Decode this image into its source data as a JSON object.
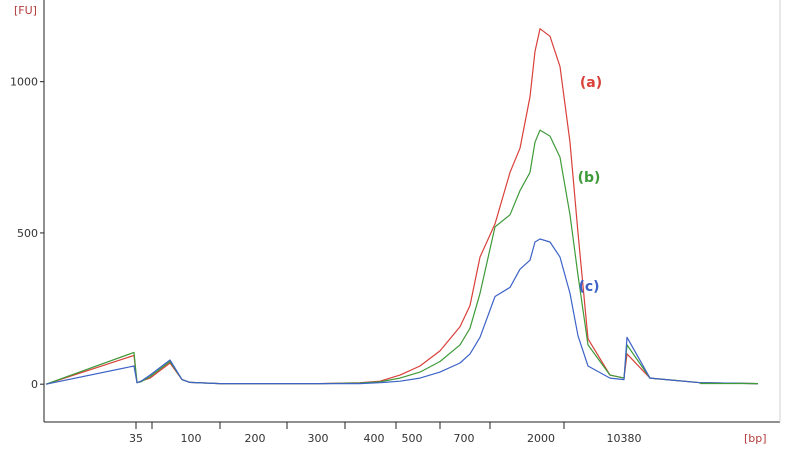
{
  "chart_data": {
    "type": "line",
    "ylabel": "[FU]",
    "xlabel": "[bp]",
    "x_scale": "categorical",
    "ylim": [
      -125,
      1270
    ],
    "y_ticks": [
      0,
      500,
      1000
    ],
    "x_ticks": [
      "35",
      "100",
      "200",
      "300",
      "400",
      "500",
      "700",
      "2000",
      "10380"
    ],
    "grid": false,
    "colors": {
      "a": "#d9403a",
      "b": "#3f9a3a",
      "c": "#3d63c7"
    },
    "series": [
      {
        "name": "(a)",
        "points": [
          [
            "35",
            0
          ],
          [
            "35",
            95
          ],
          [
            "35",
            5
          ],
          [
            "35",
            10
          ],
          [
            "35",
            20
          ],
          [
            "100",
            70
          ],
          [
            "100",
            15
          ],
          [
            "100",
            6
          ],
          [
            "200",
            2
          ],
          [
            "300",
            2
          ],
          [
            "400",
            5
          ],
          [
            "400",
            10
          ],
          [
            "500",
            30
          ],
          [
            "500",
            60
          ],
          [
            "500",
            110
          ],
          [
            "700",
            190
          ],
          [
            "700",
            260
          ],
          [
            "700",
            420
          ],
          [
            "700",
            530
          ],
          [
            "700",
            700
          ],
          [
            "700",
            780
          ],
          [
            "2000",
            950
          ],
          [
            "2000",
            1100
          ],
          [
            "2000",
            1175
          ],
          [
            "2000",
            1150
          ],
          [
            "2000",
            1050
          ],
          [
            "2000",
            800
          ],
          [
            "2000",
            500
          ],
          [
            "2000",
            150
          ],
          [
            "2000",
            30
          ],
          [
            "10380",
            20
          ],
          [
            "10380",
            100
          ],
          [
            "10380",
            20
          ],
          [
            "10380",
            5
          ],
          [
            "10380",
            2
          ]
        ]
      },
      {
        "name": "(b)",
        "points": [
          [
            "35",
            0
          ],
          [
            "35",
            105
          ],
          [
            "35",
            5
          ],
          [
            "35",
            8
          ],
          [
            "35",
            25
          ],
          [
            "100",
            75
          ],
          [
            "100",
            15
          ],
          [
            "100",
            6
          ],
          [
            "200",
            2
          ],
          [
            "300",
            2
          ],
          [
            "400",
            4
          ],
          [
            "400",
            8
          ],
          [
            "500",
            20
          ],
          [
            "500",
            40
          ],
          [
            "500",
            75
          ],
          [
            "700",
            130
          ],
          [
            "700",
            185
          ],
          [
            "700",
            300
          ],
          [
            "700",
            520
          ],
          [
            "700",
            560
          ],
          [
            "700",
            640
          ],
          [
            "2000",
            700
          ],
          [
            "2000",
            800
          ],
          [
            "2000",
            840
          ],
          [
            "2000",
            820
          ],
          [
            "2000",
            750
          ],
          [
            "2000",
            560
          ],
          [
            "2000",
            360
          ],
          [
            "2000",
            130
          ],
          [
            "2000",
            30
          ],
          [
            "10380",
            20
          ],
          [
            "10380",
            130
          ],
          [
            "10380",
            20
          ],
          [
            "10380",
            5
          ],
          [
            "10380",
            2
          ]
        ]
      },
      {
        "name": "(c)",
        "points": [
          [
            "35",
            0
          ],
          [
            "35",
            60
          ],
          [
            "35",
            5
          ],
          [
            "35",
            10
          ],
          [
            "35",
            30
          ],
          [
            "100",
            80
          ],
          [
            "100",
            15
          ],
          [
            "100",
            6
          ],
          [
            "200",
            2
          ],
          [
            "300",
            2
          ],
          [
            "400",
            2
          ],
          [
            "400",
            5
          ],
          [
            "500",
            10
          ],
          [
            "500",
            20
          ],
          [
            "500",
            40
          ],
          [
            "700",
            70
          ],
          [
            "700",
            100
          ],
          [
            "700",
            155
          ],
          [
            "700",
            290
          ],
          [
            "700",
            320
          ],
          [
            "700",
            380
          ],
          [
            "2000",
            410
          ],
          [
            "2000",
            470
          ],
          [
            "2000",
            480
          ],
          [
            "2000",
            470
          ],
          [
            "2000",
            420
          ],
          [
            "2000",
            300
          ],
          [
            "2000",
            160
          ],
          [
            "2000",
            60
          ],
          [
            "2000",
            20
          ],
          [
            "10380",
            15
          ],
          [
            "10380",
            155
          ],
          [
            "10380",
            20
          ],
          [
            "10380",
            5
          ],
          [
            "10380",
            2
          ]
        ]
      }
    ]
  }
}
